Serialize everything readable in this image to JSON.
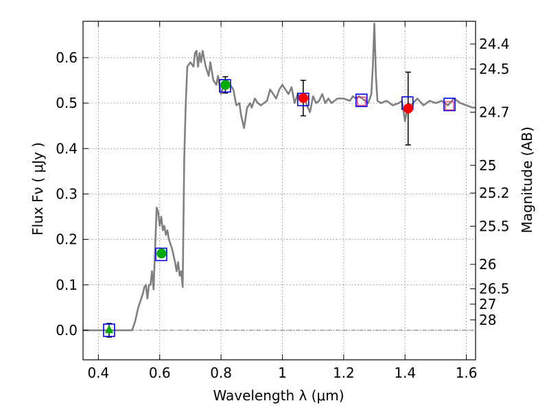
{
  "chart_data": {
    "type": "scatter",
    "xlabel": "Wavelength  λ (μm)",
    "ylabel": "Flux  Fν  ( μJy )",
    "ylabel_right": "Magnitude (AB)",
    "xlim": [
      0.35,
      1.63
    ],
    "ylim": [
      -0.065,
      0.68
    ],
    "x_ticks": [
      0.4,
      0.6,
      0.8,
      1.0,
      1.2,
      1.4,
      1.6
    ],
    "x_tick_labels": [
      "0.4",
      "0.6",
      "0.8",
      "1",
      "1.2",
      "1.4",
      "1.6"
    ],
    "y_ticks": [
      0.0,
      0.1,
      0.2,
      0.3,
      0.4,
      0.5,
      0.6
    ],
    "y_tick_labels": [
      "0.0",
      "0.1",
      "0.2",
      "0.3",
      "0.4",
      "0.5",
      "0.6"
    ],
    "right_ticks": [
      {
        "label": "24.4",
        "flux": 0.63
      },
      {
        "label": "24.5",
        "flux": 0.575
      },
      {
        "label": "24.7",
        "flux": 0.48
      },
      {
        "label": "25",
        "flux": 0.363
      },
      {
        "label": "25.2",
        "flux": 0.302
      },
      {
        "label": "25.5",
        "flux": 0.229
      },
      {
        "label": "26",
        "flux": 0.145
      },
      {
        "label": "26.5",
        "flux": 0.0912
      },
      {
        "label": "27",
        "flux": 0.0575
      },
      {
        "label": "28",
        "flux": 0.0229
      }
    ],
    "grid": true,
    "zero_line": true,
    "series": [
      {
        "kind": "model-spectrum",
        "color": "#808080",
        "points": [
          [
            0.35,
            0.0
          ],
          [
            0.51,
            0.0
          ],
          [
            0.52,
            0.02
          ],
          [
            0.53,
            0.05
          ],
          [
            0.545,
            0.08
          ],
          [
            0.55,
            0.095
          ],
          [
            0.555,
            0.1
          ],
          [
            0.56,
            0.07
          ],
          [
            0.565,
            0.1
          ],
          [
            0.57,
            0.1
          ],
          [
            0.575,
            0.13
          ],
          [
            0.58,
            0.09
          ],
          [
            0.585,
            0.18
          ],
          [
            0.59,
            0.27
          ],
          [
            0.595,
            0.26
          ],
          [
            0.6,
            0.23
          ],
          [
            0.605,
            0.25
          ],
          [
            0.61,
            0.22
          ],
          [
            0.615,
            0.23
          ],
          [
            0.62,
            0.21
          ],
          [
            0.625,
            0.22
          ],
          [
            0.63,
            0.2
          ],
          [
            0.64,
            0.18
          ],
          [
            0.65,
            0.15
          ],
          [
            0.655,
            0.13
          ],
          [
            0.66,
            0.15
          ],
          [
            0.665,
            0.12
          ],
          [
            0.67,
            0.13
          ],
          [
            0.675,
            0.095
          ],
          [
            0.68,
            0.38
          ],
          [
            0.685,
            0.5
          ],
          [
            0.69,
            0.58
          ],
          [
            0.7,
            0.59
          ],
          [
            0.71,
            0.58
          ],
          [
            0.715,
            0.61
          ],
          [
            0.72,
            0.615
          ],
          [
            0.725,
            0.58
          ],
          [
            0.73,
            0.61
          ],
          [
            0.735,
            0.59
          ],
          [
            0.74,
            0.615
          ],
          [
            0.75,
            0.58
          ],
          [
            0.76,
            0.56
          ],
          [
            0.765,
            0.59
          ],
          [
            0.775,
            0.55
          ],
          [
            0.785,
            0.54
          ],
          [
            0.79,
            0.56
          ],
          [
            0.8,
            0.52
          ],
          [
            0.81,
            0.545
          ],
          [
            0.82,
            0.55
          ],
          [
            0.83,
            0.54
          ],
          [
            0.84,
            0.53
          ],
          [
            0.85,
            0.495
          ],
          [
            0.86,
            0.5
          ],
          [
            0.865,
            0.475
          ],
          [
            0.875,
            0.445
          ],
          [
            0.885,
            0.49
          ],
          [
            0.895,
            0.5
          ],
          [
            0.9,
            0.49
          ],
          [
            0.91,
            0.51
          ],
          [
            0.92,
            0.5
          ],
          [
            0.93,
            0.495
          ],
          [
            0.95,
            0.505
          ],
          [
            0.96,
            0.53
          ],
          [
            0.97,
            0.52
          ],
          [
            0.98,
            0.51
          ],
          [
            0.99,
            0.53
          ],
          [
            1.0,
            0.54
          ],
          [
            1.01,
            0.53
          ],
          [
            1.02,
            0.52
          ],
          [
            1.03,
            0.535
          ],
          [
            1.04,
            0.5
          ],
          [
            1.05,
            0.52
          ],
          [
            1.06,
            0.51
          ],
          [
            1.07,
            0.52
          ],
          [
            1.08,
            0.495
          ],
          [
            1.09,
            0.48
          ],
          [
            1.1,
            0.515
          ],
          [
            1.11,
            0.5
          ],
          [
            1.12,
            0.505
          ],
          [
            1.13,
            0.52
          ],
          [
            1.14,
            0.5
          ],
          [
            1.15,
            0.51
          ],
          [
            1.16,
            0.5
          ],
          [
            1.18,
            0.51
          ],
          [
            1.2,
            0.51
          ],
          [
            1.22,
            0.505
          ],
          [
            1.23,
            0.515
          ],
          [
            1.24,
            0.51
          ],
          [
            1.25,
            0.515
          ],
          [
            1.26,
            0.51
          ],
          [
            1.27,
            0.505
          ],
          [
            1.28,
            0.5
          ],
          [
            1.29,
            0.52
          ],
          [
            1.295,
            0.58
          ],
          [
            1.3,
            0.675
          ],
          [
            1.305,
            0.56
          ],
          [
            1.31,
            0.505
          ],
          [
            1.32,
            0.5
          ],
          [
            1.34,
            0.505
          ],
          [
            1.36,
            0.495
          ],
          [
            1.38,
            0.5
          ],
          [
            1.39,
            0.505
          ],
          [
            1.4,
            0.46
          ],
          [
            1.41,
            0.5
          ],
          [
            1.42,
            0.495
          ],
          [
            1.44,
            0.51
          ],
          [
            1.46,
            0.495
          ],
          [
            1.48,
            0.505
          ],
          [
            1.5,
            0.5
          ],
          [
            1.52,
            0.505
          ],
          [
            1.54,
            0.495
          ],
          [
            1.56,
            0.51
          ],
          [
            1.58,
            0.5
          ],
          [
            1.6,
            0.495
          ],
          [
            1.62,
            0.49
          ],
          [
            1.63,
            0.49
          ]
        ]
      },
      {
        "kind": "model-photometry",
        "marker": "square",
        "color": "#0000ee",
        "points": [
          [
            0.435,
            0.0
          ],
          [
            0.605,
            0.167
          ],
          [
            0.813,
            0.538
          ],
          [
            1.068,
            0.508
          ],
          [
            1.258,
            0.506
          ],
          [
            1.408,
            0.5
          ],
          [
            1.545,
            0.497
          ]
        ]
      },
      {
        "kind": "hst-photometry",
        "marker": "circle",
        "color": "#00aa00",
        "points": [
          [
            0.606,
            0.169,
            0.006
          ],
          [
            0.814,
            0.54,
            0.018
          ]
        ]
      },
      {
        "kind": "hst-ir-photometry",
        "marker": "circle",
        "color": "#ff0000",
        "points": [
          [
            1.068,
            0.511,
            0.039
          ],
          [
            1.41,
            0.488,
            0.08
          ]
        ]
      },
      {
        "kind": "upper-limit",
        "marker": "triangle",
        "color": "#00aa00",
        "points": [
          [
            0.435,
            0.0,
            0.015
          ]
        ]
      },
      {
        "kind": "open-markers",
        "marker": "open-square",
        "color": "#dd3366",
        "points": [
          [
            1.258,
            0.504
          ],
          [
            1.545,
            0.494
          ]
        ]
      }
    ]
  }
}
